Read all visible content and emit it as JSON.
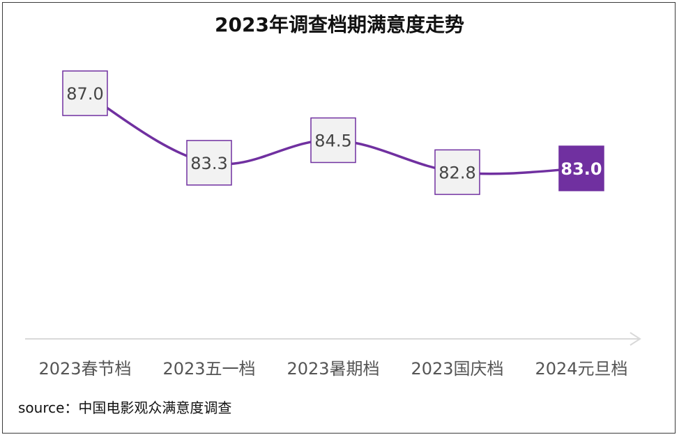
{
  "chart_data": {
    "type": "line",
    "title": "2023年调查档期满意度走势",
    "categories": [
      "2023春节档",
      "2023五一档",
      "2023暑期档",
      "2023国庆档",
      "2024元旦档"
    ],
    "series": [
      {
        "values": [
          87.0,
          83.3,
          84.5,
          82.8,
          83.0
        ]
      }
    ],
    "data_labels": [
      "87.0",
      "83.3",
      "84.5",
      "82.8",
      "83.0"
    ],
    "highlight_index": 4,
    "ylim": [
      81,
      89
    ],
    "grid": false,
    "colors": {
      "line": "#7030a0",
      "label_box_fill": "#f2f2f2",
      "label_box_border": "#7030a0",
      "highlight_fill": "#7030a0",
      "highlight_text": "#ffffff",
      "axis": "#d9d9d9"
    }
  },
  "footer": {
    "source": "source：中国电影观众满意度调查"
  }
}
